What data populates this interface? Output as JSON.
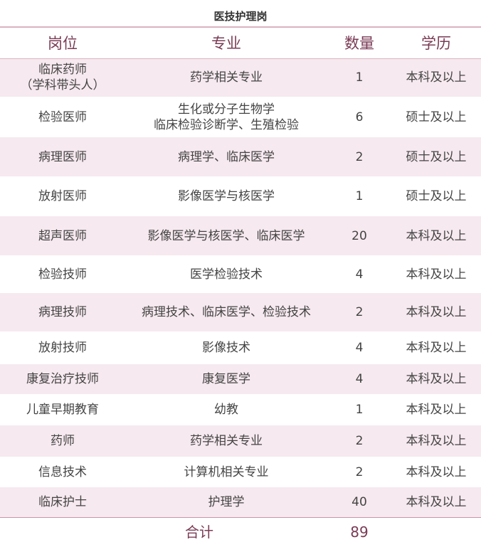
{
  "title": "医技护理岗",
  "headers": [
    "岗位",
    "专业",
    "数量",
    "学历"
  ],
  "rows": [
    {
      "position": "临床药师\n（学科带头人）",
      "major": "药学相关专业",
      "count": "1",
      "education": "本科及以上"
    },
    {
      "position": "检验医师",
      "major": "生化或分子生物学\n临床检验诊断学、生殖检验",
      "count": "6",
      "education": "硕士及以上"
    },
    {
      "position": "病理医师",
      "major": "病理学、临床医学",
      "count": "2",
      "education": "硕士及以上"
    },
    {
      "position": "放射医师",
      "major": "影像医学与核医学",
      "count": "1",
      "education": "硕士及以上"
    },
    {
      "position": "超声医师",
      "major": "影像医学与核医学、临床医学",
      "count": "20",
      "education": "本科及以上"
    },
    {
      "position": "检验技师",
      "major": "医学检验技术",
      "count": "4",
      "education": "本科及以上"
    },
    {
      "position": "病理技师",
      "major": "病理技术、临床医学、检验技术",
      "count": "2",
      "education": "本科及以上"
    },
    {
      "position": "放射技师",
      "major": "影像技术",
      "count": "4",
      "education": "本科及以上"
    },
    {
      "position": "康复治疗技师",
      "major": "康复医学",
      "count": "4",
      "education": "本科及以上"
    },
    {
      "position": "儿童早期教育",
      "major": "幼教",
      "count": "1",
      "education": "本科及以上"
    },
    {
      "position": "药师",
      "major": "药学相关专业",
      "count": "2",
      "education": "本科及以上"
    },
    {
      "position": "信息技术",
      "major": "计算机相关专业",
      "count": "2",
      "education": "本科及以上"
    },
    {
      "position": "临床护士",
      "major": "护理学",
      "count": "40",
      "education": "本科及以上"
    }
  ],
  "total": {
    "label": "合计",
    "count": "89"
  },
  "colors": {
    "accent": "#7a3b55",
    "row_shade": "#f6e9ef",
    "rule": "#d9b3c1"
  }
}
